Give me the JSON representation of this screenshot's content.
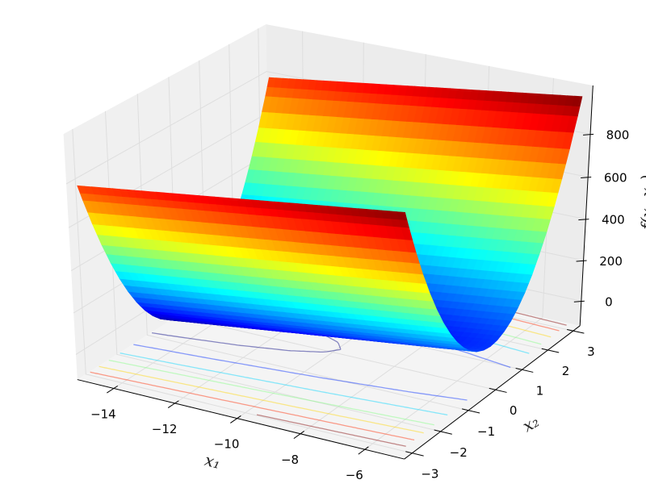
{
  "chart_data": {
    "type": "surface",
    "xlabel": "x₁",
    "ylabel": "x₂",
    "zlabel": "f(x₁,x₂)",
    "xlim": [
      -15,
      -5
    ],
    "ylim": [
      -3.14,
      3.14
    ],
    "zlim": [
      -100,
      1000
    ],
    "x_ticks": [
      {
        "value": -14,
        "label": "−14"
      },
      {
        "value": -12,
        "label": "−12"
      },
      {
        "value": -10,
        "label": "−10"
      },
      {
        "value": -8,
        "label": "−8"
      },
      {
        "value": -6,
        "label": "−6"
      }
    ],
    "y_ticks": [
      {
        "value": -3,
        "label": "−3"
      },
      {
        "value": -2,
        "label": "−2"
      },
      {
        "value": -1,
        "label": "−1"
      },
      {
        "value": 0,
        "label": "0"
      },
      {
        "value": 1,
        "label": "1"
      },
      {
        "value": 2,
        "label": "2"
      },
      {
        "value": 3,
        "label": "3"
      }
    ],
    "z_ticks": [
      {
        "value": 0,
        "label": "0"
      },
      {
        "value": 200,
        "label": "200"
      },
      {
        "value": 400,
        "label": "400"
      },
      {
        "value": 600,
        "label": "600"
      },
      {
        "value": 800,
        "label": "800"
      }
    ],
    "grid": true,
    "colormap": "jet",
    "surface": {
      "x1": [
        -15,
        -5
      ],
      "x2": [
        -3.14,
        -3,
        -2.75,
        -2.5,
        -2.25,
        -2,
        -1.75,
        -1.5,
        -1.25,
        -1,
        -0.75,
        -0.5,
        -0.25,
        0,
        0.25,
        0.5,
        0.75,
        1,
        1.25,
        1.5,
        1.75,
        2,
        2.25,
        2.5,
        2.75,
        3,
        3.14
      ],
      "z": [
        [
          787,
          709,
          578,
          459,
          351,
          254,
          169,
          95,
          32,
          -19,
          -59,
          -87,
          -104,
          -110,
          -104,
          -87,
          -59,
          -19,
          32,
          95,
          169,
          254,
          351,
          459,
          578,
          709,
          787
        ],
        [
          977,
          899,
          768,
          649,
          541,
          444,
          359,
          285,
          222,
          171,
          131,
          103,
          86,
          80,
          86,
          103,
          131,
          171,
          222,
          285,
          359,
          444,
          541,
          649,
          768,
          899,
          977
        ]
      ]
    },
    "contours": {
      "offset": -100,
      "levels": [
        -10,
        140,
        290,
        440,
        590,
        740,
        890
      ]
    },
    "colors": {
      "pane_floor": "#f4f4f4",
      "pane_left": "#f0f0f0",
      "pane_back": "#ececec",
      "grid": "#dedede",
      "axis": "#000000"
    }
  }
}
